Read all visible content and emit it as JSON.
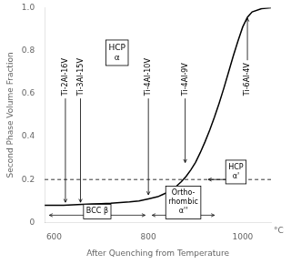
{
  "chart_data": {
    "type": "line",
    "x": [
      580,
      600,
      620,
      640,
      660,
      680,
      700,
      720,
      740,
      760,
      780,
      800,
      810,
      820,
      830,
      840,
      850,
      860,
      870,
      880,
      890,
      900,
      910,
      920,
      930,
      940,
      950,
      960,
      970,
      980,
      990,
      1000,
      1010,
      1020,
      1040,
      1060
    ],
    "values": [
      0.08,
      0.08,
      0.08,
      0.082,
      0.084,
      0.086,
      0.088,
      0.09,
      0.093,
      0.096,
      0.1,
      0.11,
      0.115,
      0.12,
      0.13,
      0.14,
      0.155,
      0.17,
      0.19,
      0.215,
      0.245,
      0.28,
      0.325,
      0.375,
      0.43,
      0.49,
      0.555,
      0.625,
      0.7,
      0.775,
      0.845,
      0.91,
      0.955,
      0.98,
      0.995,
      1.0
    ],
    "color": "black",
    "xlabel": "After Quenching from Temperature",
    "ylabel": "Second Phase Volume Fraction",
    "xlim": [
      580,
      1060
    ],
    "ylim": [
      0,
      1.0
    ],
    "xticks": [
      600,
      800,
      1000
    ],
    "yticks": [
      0,
      0.2,
      0.4,
      0.6,
      0.8,
      {
        "value": 1.0,
        "label": "1.0"
      }
    ],
    "x_unit": "°C",
    "grid": false,
    "hline": {
      "y": 0.2,
      "line_style": "dashed"
    },
    "phase_labels": [
      {
        "text": "HCP\nα"
      },
      {
        "text": "HCP\nα'",
        "x": 925,
        "y": 0.2
      },
      {
        "text": "BCC β",
        "x_range": [
          590,
          793
        ]
      },
      {
        "text": "Ortho-\nrhombic\nα''",
        "x_range": [
          808,
          940
        ]
      }
    ],
    "alloy_labels": [
      {
        "text": "Ti-2Al-16V",
        "x": 624,
        "y": 0.09
      },
      {
        "text": "Ti-3Al-15V",
        "x": 656,
        "y": 0.09
      },
      {
        "text": "Ti-4Al-10V",
        "x": 800,
        "y": 0.125
      },
      {
        "text": "Ti-4Al-9V",
        "x": 878,
        "y": 0.275
      },
      {
        "text": "Ti-6Al-4V",
        "x": 1010,
        "y": 0.955
      }
    ]
  }
}
